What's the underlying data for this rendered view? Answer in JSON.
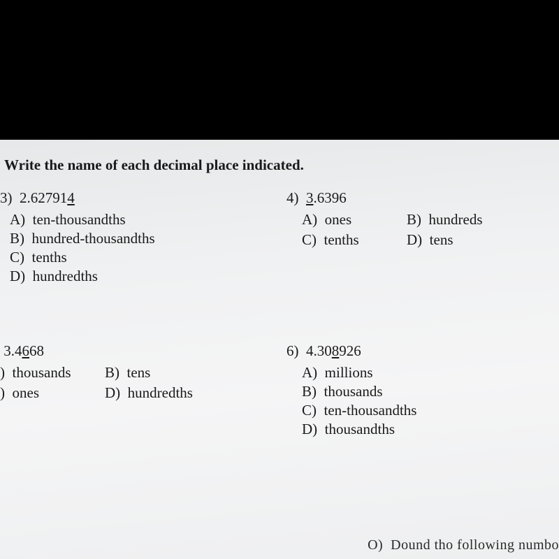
{
  "instruction": "Write the name of each decimal place indicated.",
  "q3": {
    "label": "3)  2.627914",
    "underline_char_index": 11,
    "options": {
      "A": "A)  ten-thousandths",
      "B": "B)  hundred-thousandths",
      "C": "C)  tenths",
      "D": "D)  hundredths"
    }
  },
  "q4": {
    "label": "4)  3.6396",
    "underline_char_index": 4,
    "options": {
      "A": "A)  ones",
      "B": "B)  hundreds",
      "C": "C)  tenths",
      "D": "D)  tens"
    }
  },
  "q5": {
    "label": " 3.4668",
    "underline_char_index": 4,
    "options": {
      "A": ")  thousands",
      "B": "B)  tens",
      "C": ")  ones",
      "D": "D)  hundredths"
    }
  },
  "q6": {
    "label": "6)  4.308926",
    "underline_char_index": 8,
    "options": {
      "A": "A)  millions",
      "B": "B)  thousands",
      "C": "C)  ten-thousandths",
      "D": "D)  thousandths"
    }
  },
  "cutoff_text": "O)  Dound tho following numbo",
  "colors": {
    "black_bar": "#000000",
    "page_bg": "#f0f1f2",
    "text": "#1a1a1a"
  },
  "fontsize": {
    "body": 21
  }
}
